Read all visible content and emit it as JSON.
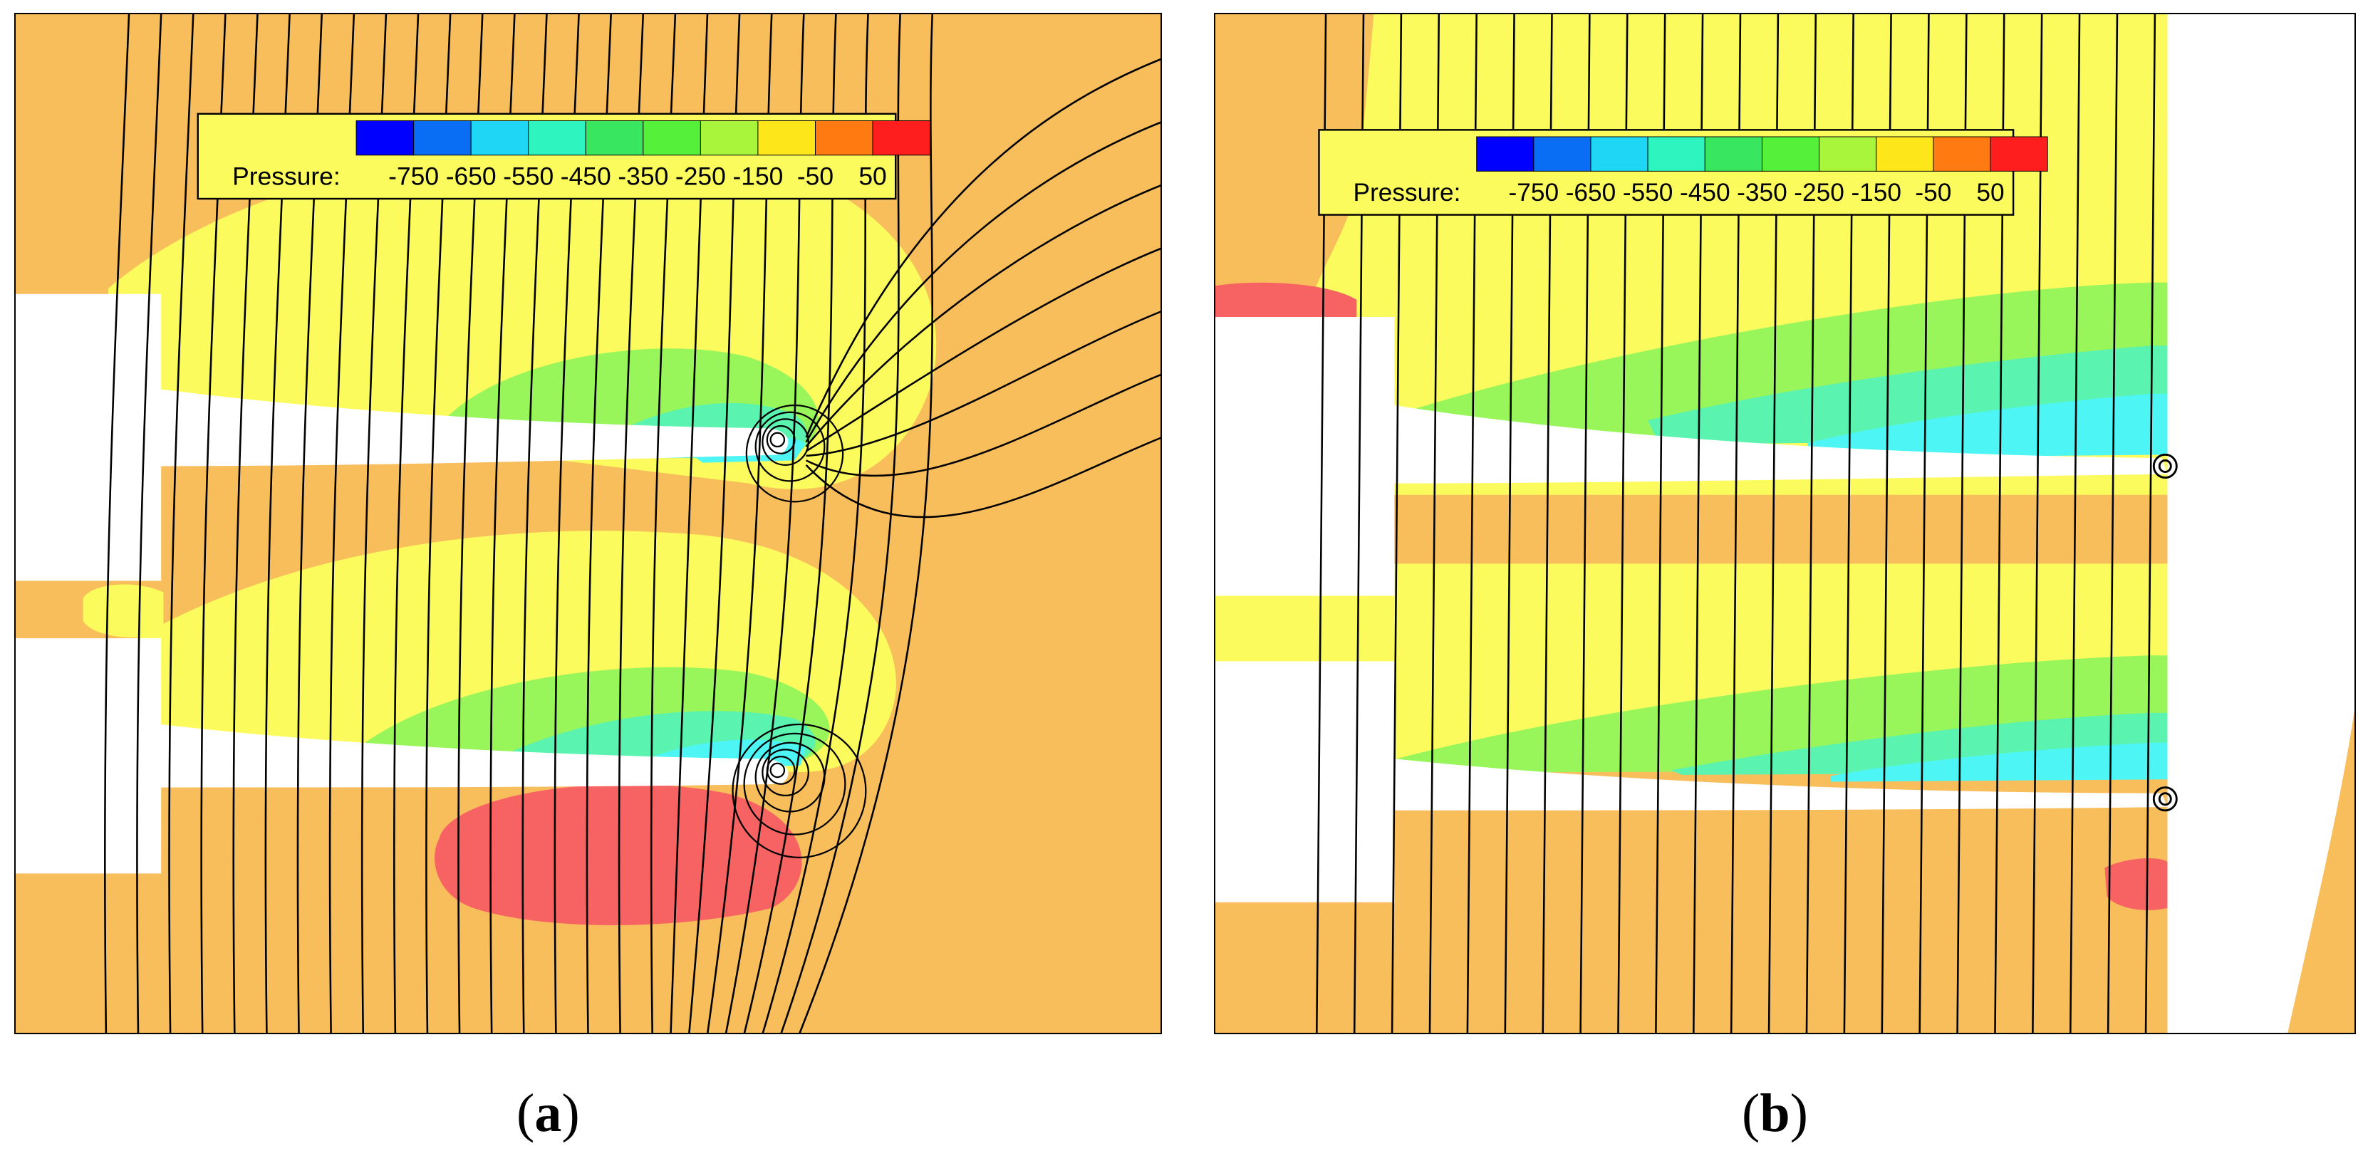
{
  "colors": {
    "ambient": "#F8BE5C",
    "low_suction": "#FBFB5E",
    "mid_suction": "#98F55A",
    "mid_green": "#6DF07A",
    "high_suction": "#5AF3B0",
    "peak_suction": "#4DF5F5",
    "overpressure": "#F76363",
    "solid": "#FFFFFF",
    "streamline": "#000000"
  },
  "legend": {
    "title": "Pressure:",
    "levels": [
      "-750",
      "-650",
      "-550",
      "-450",
      "-350",
      "-250",
      "-150",
      "-50",
      "50"
    ],
    "swatches": [
      "#0000FF",
      "#0A6EF5",
      "#1FD7F5",
      "#2EF5C0",
      "#38E660",
      "#55F03A",
      "#A8F53C",
      "#FDE61A",
      "#FF7A10",
      "#FF1E1E"
    ]
  },
  "panels": [
    {
      "id": "a",
      "label": "a",
      "caption_open": "(",
      "caption_close": ")"
    },
    {
      "id": "b",
      "label": "b",
      "caption_open": "(",
      "caption_close": ")"
    }
  ]
}
